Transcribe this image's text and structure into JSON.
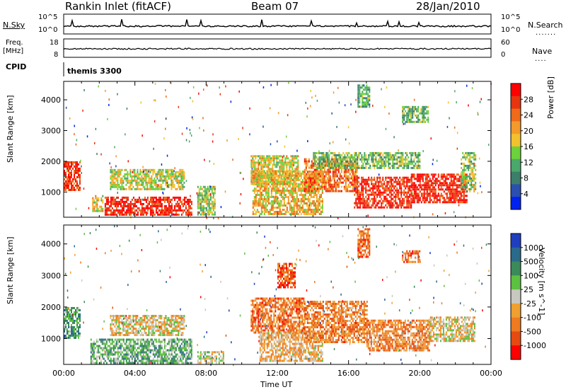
{
  "header": {
    "station": "Rankin Inlet (fitACF)",
    "beam": "Beam 07",
    "date": "28/Jan/2010"
  },
  "sky_panel": {
    "left_label": "N.Sky",
    "right_label": "N.Search",
    "left_ticks": [
      "10^5",
      "10^0"
    ],
    "right_ticks": [
      "10^5",
      "10^0"
    ]
  },
  "freq_panel": {
    "left_label_line1": "Freq.",
    "left_label_line2": "[MHz]",
    "right_label": "Nave",
    "left_ticks": [
      "18",
      "8"
    ],
    "right_ticks": [
      "60",
      "0"
    ]
  },
  "cpid": {
    "label": "CPID",
    "value": "themis 3300"
  },
  "colors": {
    "power": [
      "#0022ee",
      "#2a4fb0",
      "#3b7f6a",
      "#4aa86a",
      "#6cd13a",
      "#f2c12c",
      "#f39a2a",
      "#ef6a1a",
      "#e6350f",
      "#ff0000"
    ],
    "velocity": [
      "#1f3fbf",
      "#2a6a8a",
      "#3a8a5a",
      "#5cc040",
      "#c8c8c0",
      "#f0a030",
      "#ef7a20",
      "#e64a10",
      "#ff0000"
    ]
  },
  "chart_data": [
    {
      "type": "heatmap",
      "panel": "power",
      "xlabel": "",
      "ylabel": "Slant Range [km]",
      "x_ticks": [
        "00:00",
        "04:00",
        "08:00",
        "12:00",
        "16:00",
        "20:00",
        "00:00"
      ],
      "xlim_hours": [
        0,
        24
      ],
      "y_ticks": [
        1000,
        2000,
        3000,
        4000
      ],
      "ylim": [
        180,
        4600
      ],
      "colorbar": {
        "label": "Power [dB]",
        "ticks": [
          "28",
          "24",
          "20",
          "16",
          "12",
          "8",
          "4"
        ],
        "range": [
          0,
          30
        ]
      },
      "regions": [
        {
          "t0": 0.0,
          "t1": 0.9,
          "r0": 1100,
          "r1": 2000,
          "level": 0.85
        },
        {
          "t0": 1.6,
          "t1": 2.2,
          "r0": 400,
          "r1": 900,
          "level": 0.55
        },
        {
          "t0": 2.3,
          "t1": 7.2,
          "r0": 250,
          "r1": 850,
          "level": 0.9
        },
        {
          "t0": 2.6,
          "t1": 6.8,
          "r0": 1100,
          "r1": 1750,
          "level": 0.5
        },
        {
          "t0": 7.5,
          "t1": 8.5,
          "r0": 300,
          "r1": 1200,
          "level": 0.45
        },
        {
          "t0": 10.5,
          "t1": 13.2,
          "r0": 1300,
          "r1": 2200,
          "level": 0.55
        },
        {
          "t0": 10.6,
          "t1": 14.5,
          "r0": 300,
          "r1": 1700,
          "level": 0.6
        },
        {
          "t0": 13.5,
          "t1": 16.5,
          "r0": 1000,
          "r1": 2100,
          "level": 0.75
        },
        {
          "t0": 16.3,
          "t1": 19.5,
          "r0": 500,
          "r1": 1500,
          "level": 0.88
        },
        {
          "t0": 19.5,
          "t1": 22.6,
          "r0": 700,
          "r1": 1600,
          "level": 0.9
        },
        {
          "t0": 22.3,
          "t1": 23.1,
          "r0": 1000,
          "r1": 2300,
          "level": 0.45
        },
        {
          "t0": 14.0,
          "t1": 20.0,
          "r0": 1800,
          "r1": 2300,
          "level": 0.4
        },
        {
          "t0": 16.5,
          "t1": 17.2,
          "r0": 3800,
          "r1": 4500,
          "level": 0.35
        },
        {
          "t0": 19.0,
          "t1": 20.5,
          "r0": 3300,
          "r1": 3800,
          "level": 0.4
        }
      ]
    },
    {
      "type": "heatmap",
      "panel": "velocity",
      "xlabel": "Time UT",
      "ylabel": "Slant Range [km]",
      "x_ticks": [
        "00:00",
        "04:00",
        "08:00",
        "12:00",
        "16:00",
        "20:00",
        "00:00"
      ],
      "xlim_hours": [
        0,
        24
      ],
      "y_ticks": [
        1000,
        2000,
        3000,
        4000
      ],
      "ylim": [
        180,
        4600
      ],
      "colorbar": {
        "label": "Velocity [m s^-1]",
        "ticks": [
          "1000",
          "500",
          "100",
          "25",
          "-25",
          "-100",
          "-500",
          "-1000"
        ],
        "range": [
          -1000,
          1000
        ]
      },
      "regions": [
        {
          "t0": 0.0,
          "t1": 0.9,
          "r0": 1000,
          "r1": 2000,
          "level": 0.3
        },
        {
          "t0": 1.5,
          "t1": 7.2,
          "r0": 250,
          "r1": 1000,
          "level": 0.35
        },
        {
          "t0": 2.6,
          "t1": 6.8,
          "r0": 1100,
          "r1": 1750,
          "level": 0.55
        },
        {
          "t0": 7.5,
          "t1": 9.0,
          "r0": 250,
          "r1": 600,
          "level": 0.5
        },
        {
          "t0": 10.5,
          "t1": 13.5,
          "r0": 1200,
          "r1": 2300,
          "level": 0.75
        },
        {
          "t0": 11.0,
          "t1": 14.5,
          "r0": 300,
          "r1": 1200,
          "level": 0.6
        },
        {
          "t0": 13.5,
          "t1": 17.0,
          "r0": 900,
          "r1": 2200,
          "level": 0.72
        },
        {
          "t0": 17.0,
          "t1": 20.5,
          "r0": 600,
          "r1": 1600,
          "level": 0.7
        },
        {
          "t0": 20.5,
          "t1": 23.1,
          "r0": 900,
          "r1": 1700,
          "level": 0.55
        },
        {
          "t0": 16.5,
          "t1": 17.2,
          "r0": 3600,
          "r1": 4500,
          "level": 0.75
        },
        {
          "t0": 19.0,
          "t1": 20.0,
          "r0": 3400,
          "r1": 3800,
          "level": 0.78
        },
        {
          "t0": 12.0,
          "t1": 13.0,
          "r0": 2600,
          "r1": 3400,
          "level": 0.8
        }
      ]
    }
  ]
}
